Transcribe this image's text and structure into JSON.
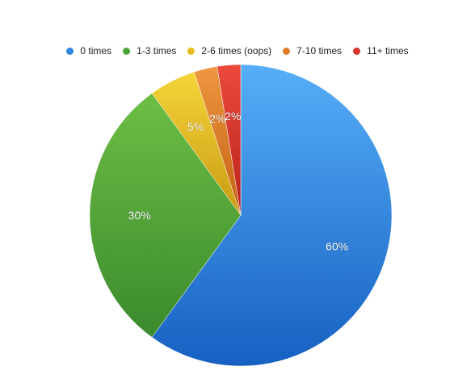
{
  "chart_data": {
    "type": "pie",
    "legend_position": "top",
    "slices": [
      {
        "label": "0 times",
        "value": 60,
        "value_label": "60%",
        "color": "#2E86E0",
        "light": "#56AEF8",
        "dark": "#1660C2"
      },
      {
        "label": "1-3 times",
        "value": 30,
        "value_label": "30%",
        "color": "#4CA337",
        "light": "#6DBE45",
        "dark": "#3A8A2D"
      },
      {
        "label": "2-6 times (oops)",
        "value": 5,
        "value_label": "5%",
        "color": "#E5BC1E",
        "light": "#F4D53A",
        "dark": "#C99A12"
      },
      {
        "label": "7-10 times",
        "value": 2.5,
        "value_label": "2%",
        "color": "#E07B25",
        "light": "#EE9740",
        "dark": "#C25F14"
      },
      {
        "label": "11+ times",
        "value": 2.5,
        "value_label": "2%",
        "color": "#D9342B",
        "light": "#EC4A3C",
        "dark": "#B8221B"
      }
    ]
  }
}
